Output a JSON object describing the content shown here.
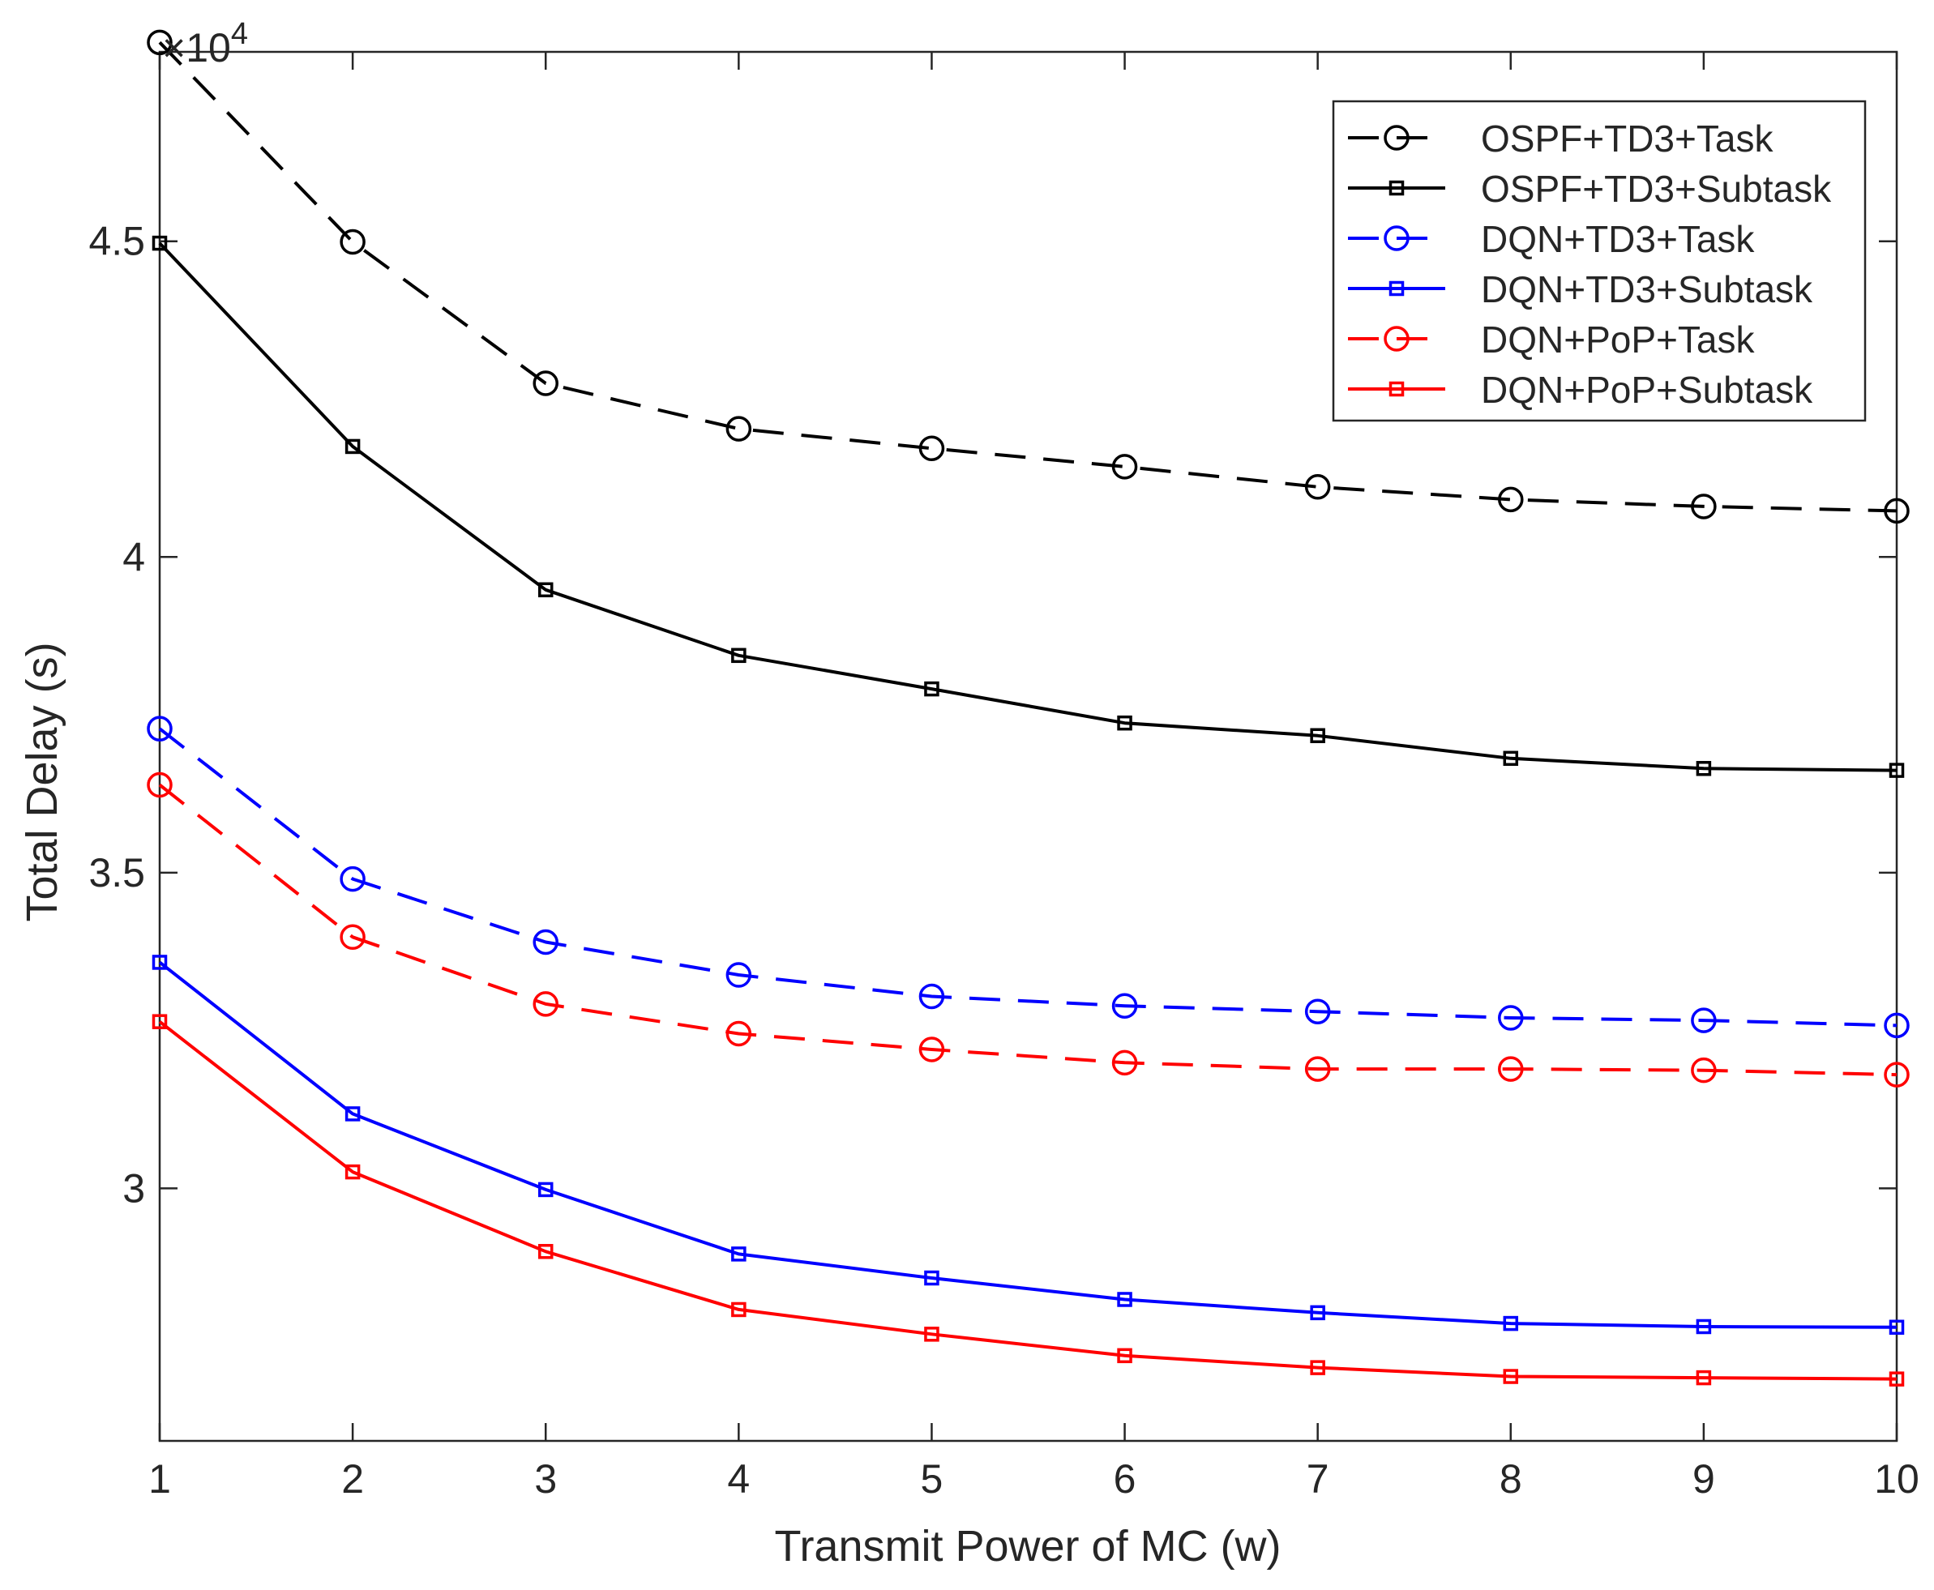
{
  "chart_data": {
    "type": "line",
    "xlabel": "Transmit Power of MC (w)",
    "ylabel": "Total Delay (s)",
    "y_exponent_label": "×10",
    "y_exponent_power": "4",
    "xlim": [
      1,
      10
    ],
    "ylim": [
      2.6,
      4.8
    ],
    "x_ticks": [
      1,
      2,
      3,
      4,
      5,
      6,
      7,
      8,
      9,
      10
    ],
    "x_tick_labels": [
      "1",
      "2",
      "3",
      "4",
      "5",
      "6",
      "7",
      "8",
      "9",
      "10"
    ],
    "y_ticks": [
      3,
      3.5,
      4,
      4.5
    ],
    "y_tick_labels": [
      "3",
      "3.5",
      "4",
      "4.5"
    ],
    "grid": false,
    "legend_position": "top-right",
    "x": [
      1,
      2,
      3,
      4,
      5,
      6,
      7,
      8,
      9,
      10
    ],
    "series": [
      {
        "name": "OSPF+TD3+Task",
        "color": "#000000",
        "marker": "circle",
        "dashed": true,
        "values": [
          4.815,
          4.499,
          4.275,
          4.203,
          4.172,
          4.143,
          4.111,
          4.091,
          4.08,
          4.073
        ]
      },
      {
        "name": "OSPF+TD3+Subtask",
        "color": "#000000",
        "marker": "square",
        "dashed": false,
        "values": [
          4.497,
          4.175,
          3.948,
          3.844,
          3.791,
          3.737,
          3.717,
          3.681,
          3.665,
          3.662
        ]
      },
      {
        "name": "DQN+TD3+Task",
        "color": "#0000ff",
        "marker": "circle",
        "dashed": true,
        "values": [
          3.728,
          3.49,
          3.39,
          3.338,
          3.304,
          3.289,
          3.28,
          3.27,
          3.266,
          3.258
        ]
      },
      {
        "name": "DQN+TD3+Subtask",
        "color": "#0000ff",
        "marker": "square",
        "dashed": false,
        "values": [
          3.358,
          3.118,
          2.998,
          2.896,
          2.858,
          2.824,
          2.803,
          2.786,
          2.781,
          2.78
        ]
      },
      {
        "name": "DQN+PoP+Task",
        "color": "#ff0000",
        "marker": "circle",
        "dashed": true,
        "values": [
          3.639,
          3.398,
          3.292,
          3.245,
          3.22,
          3.199,
          3.189,
          3.189,
          3.187,
          3.18
        ]
      },
      {
        "name": "DQN+PoP+Subtask",
        "color": "#ff0000",
        "marker": "square",
        "dashed": false,
        "values": [
          3.264,
          3.026,
          2.9,
          2.808,
          2.769,
          2.735,
          2.716,
          2.702,
          2.7,
          2.698
        ]
      }
    ]
  }
}
